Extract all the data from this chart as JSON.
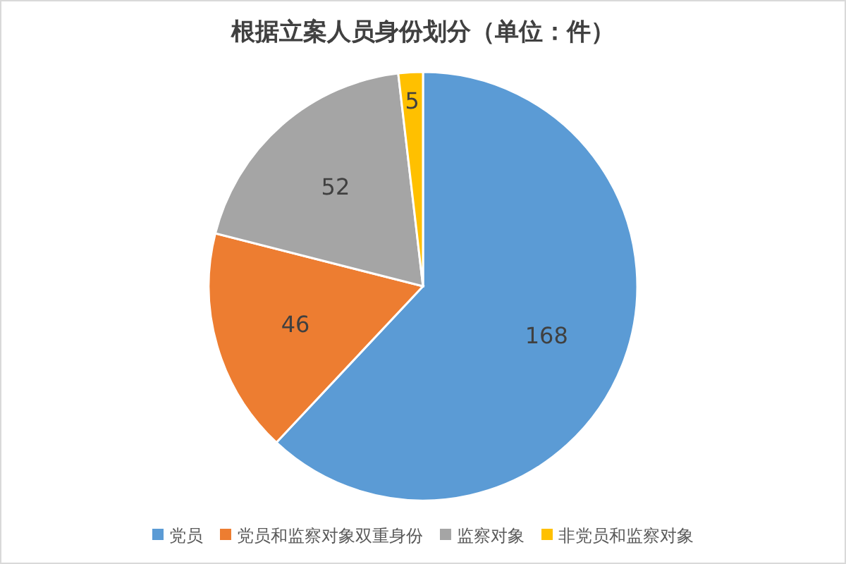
{
  "chart_data": {
    "type": "pie",
    "title": "根据立案人员身份划分（单位：件）",
    "categories": [
      "党员",
      "党员和监察对象双重身份",
      "监察对象",
      "非党员和监察对象"
    ],
    "values": [
      168,
      46,
      52,
      5
    ],
    "colors": [
      "#5b9bd5",
      "#ed7d31",
      "#a5a5a5",
      "#ffc000"
    ],
    "data_labels": true,
    "legend": "bottom"
  }
}
